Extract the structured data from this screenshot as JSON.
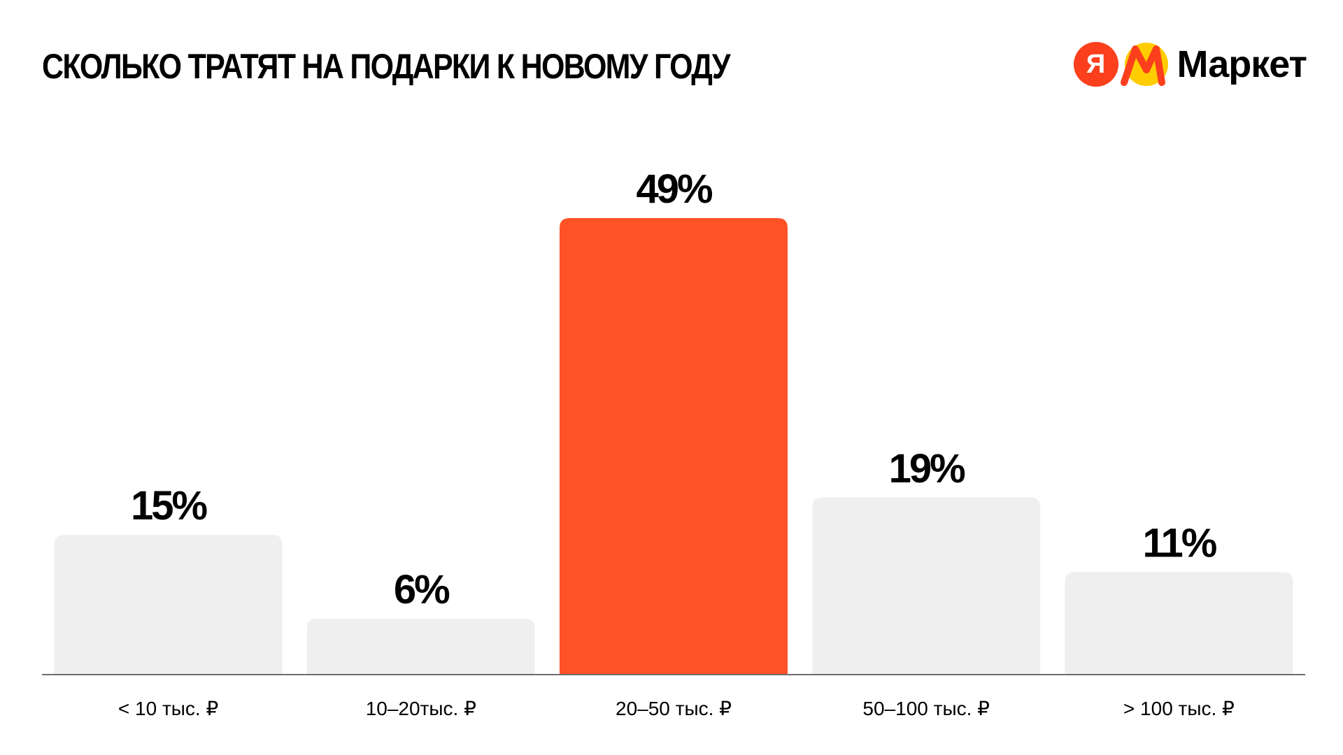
{
  "header": {
    "title": "СКОЛЬКО ТРАТЯТ НА ПОДАРКИ К НОВОМУ ГОДУ"
  },
  "logo": {
    "letter": "Я",
    "text": "Маркет",
    "red": "#FC3F1D",
    "yellow": "#FFCC00"
  },
  "chart_data": {
    "type": "bar",
    "title": "СКОЛЬКО ТРАТЯТ НА ПОДАРКИ К НОВОМУ ГОДУ",
    "categories": [
      "< 10 тыс. ₽",
      "10–20тыс. ₽",
      "20–50 тыс. ₽",
      "50–100 тыс. ₽",
      "> 100 тыс. ₽"
    ],
    "values": [
      15,
      6,
      49,
      19,
      11
    ],
    "value_labels": [
      "15%",
      "6%",
      "49%",
      "19%",
      "11%"
    ],
    "unit": "%",
    "ylim": [
      0,
      49
    ],
    "highlight_index": 2,
    "colors": {
      "bar": "#EFEFEF",
      "highlight": "#FF5226",
      "axis": "#6E6E6E",
      "text": "#000000"
    },
    "grid": false,
    "legend": "none",
    "xlabel": "",
    "ylabel": ""
  }
}
